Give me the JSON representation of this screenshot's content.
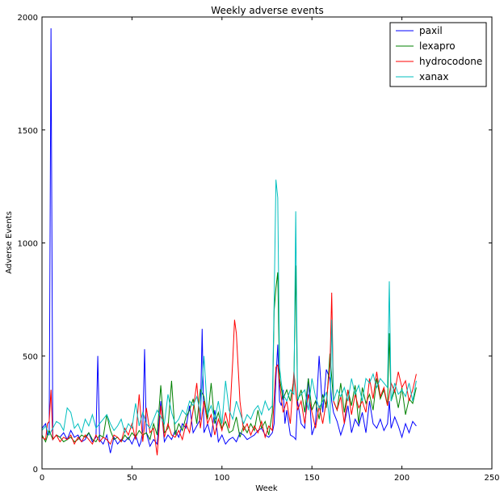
{
  "chart_data": {
    "type": "line",
    "title": "Weekly adverse events",
    "xlabel": "Week",
    "ylabel": "Adverse Events",
    "xlim": [
      0,
      250
    ],
    "ylim": [
      0,
      2000
    ],
    "xticks": [
      0,
      50,
      100,
      150,
      200,
      250
    ],
    "yticks": [
      0,
      500,
      1000,
      1500,
      2000
    ],
    "legend_position": "top-right",
    "grid": false,
    "series": [
      {
        "name": "paxil",
        "color": "#0000ff",
        "x": [
          0,
          2,
          3,
          4,
          5,
          6,
          8,
          10,
          12,
          14,
          16,
          18,
          20,
          22,
          24,
          26,
          28,
          30,
          31,
          32,
          34,
          36,
          38,
          40,
          42,
          44,
          46,
          48,
          50,
          52,
          54,
          55,
          56,
          57,
          58,
          60,
          62,
          64,
          66,
          68,
          70,
          72,
          74,
          76,
          78,
          80,
          82,
          84,
          86,
          88,
          89,
          90,
          92,
          94,
          96,
          98,
          100,
          102,
          104,
          106,
          108,
          110,
          112,
          114,
          116,
          118,
          120,
          122,
          124,
          126,
          128,
          129,
          130,
          131,
          132,
          133,
          134,
          135,
          136,
          138,
          140,
          141,
          142,
          144,
          146,
          148,
          150,
          152,
          154,
          156,
          158,
          160,
          161,
          162,
          164,
          166,
          168,
          170,
          172,
          174,
          176,
          178,
          180,
          182,
          184,
          186,
          188,
          190,
          192,
          193,
          194,
          196,
          198,
          200,
          202,
          204,
          206,
          208
        ],
        "y": [
          180,
          200,
          150,
          160,
          1950,
          130,
          150,
          140,
          160,
          130,
          170,
          140,
          150,
          120,
          130,
          160,
          120,
          140,
          500,
          130,
          110,
          150,
          70,
          140,
          110,
          130,
          120,
          140,
          110,
          150,
          100,
          120,
          170,
          530,
          160,
          100,
          130,
          110,
          300,
          120,
          150,
          130,
          170,
          140,
          200,
          180,
          280,
          160,
          190,
          220,
          620,
          160,
          200,
          140,
          260,
          120,
          150,
          110,
          130,
          140,
          120,
          160,
          150,
          130,
          140,
          150,
          170,
          180,
          150,
          140,
          160,
          200,
          400,
          550,
          300,
          280,
          350,
          200,
          260,
          150,
          140,
          130,
          300,
          200,
          180,
          400,
          150,
          200,
          500,
          250,
          440,
          400,
          300,
          250,
          210,
          150,
          200,
          280,
          160,
          220,
          190,
          250,
          160,
          300,
          200,
          180,
          220,
          170,
          200,
          300,
          180,
          230,
          190,
          140,
          200,
          160,
          210,
          190
        ]
      },
      {
        "name": "lexapro",
        "color": "#008000",
        "x": [
          0,
          2,
          4,
          6,
          8,
          10,
          12,
          14,
          16,
          18,
          20,
          22,
          24,
          26,
          28,
          30,
          32,
          34,
          36,
          38,
          40,
          42,
          44,
          46,
          48,
          50,
          52,
          54,
          56,
          58,
          60,
          62,
          64,
          66,
          68,
          70,
          72,
          74,
          76,
          78,
          80,
          82,
          84,
          86,
          88,
          90,
          92,
          94,
          96,
          98,
          100,
          102,
          104,
          106,
          108,
          110,
          112,
          114,
          116,
          118,
          120,
          122,
          124,
          126,
          128,
          129,
          130,
          131,
          132,
          134,
          136,
          138,
          140,
          141,
          142,
          144,
          146,
          148,
          150,
          152,
          154,
          156,
          158,
          160,
          162,
          164,
          166,
          168,
          170,
          172,
          174,
          176,
          178,
          180,
          182,
          184,
          186,
          188,
          190,
          192,
          193,
          194,
          196,
          198,
          200,
          202,
          204,
          206,
          208
        ],
        "y": [
          150,
          120,
          170,
          130,
          150,
          140,
          120,
          130,
          140,
          120,
          130,
          150,
          140,
          160,
          130,
          120,
          150,
          140,
          240,
          170,
          130,
          140,
          120,
          150,
          130,
          160,
          140,
          170,
          150,
          160,
          130,
          200,
          150,
          370,
          160,
          180,
          390,
          150,
          200,
          170,
          230,
          260,
          310,
          200,
          350,
          320,
          220,
          380,
          200,
          250,
          180,
          210,
          160,
          170,
          230,
          140,
          190,
          160,
          200,
          170,
          260,
          180,
          210,
          150,
          250,
          700,
          800,
          870,
          400,
          310,
          350,
          300,
          400,
          900,
          300,
          350,
          250,
          400,
          260,
          300,
          220,
          330,
          270,
          510,
          300,
          260,
          380,
          250,
          350,
          280,
          370,
          200,
          360,
          290,
          330,
          260,
          400,
          310,
          350,
          280,
          600,
          300,
          350,
          270,
          360,
          240,
          310,
          290,
          360
        ]
      },
      {
        "name": "hydrocodone",
        "color": "#ff0000",
        "x": [
          0,
          2,
          3,
          4,
          5,
          6,
          8,
          10,
          12,
          14,
          16,
          18,
          20,
          22,
          24,
          26,
          28,
          30,
          32,
          34,
          36,
          38,
          40,
          42,
          44,
          46,
          48,
          50,
          52,
          54,
          56,
          58,
          60,
          62,
          64,
          66,
          68,
          70,
          72,
          74,
          76,
          78,
          80,
          82,
          84,
          86,
          88,
          90,
          92,
          94,
          96,
          98,
          100,
          102,
          104,
          106,
          107,
          108,
          110,
          112,
          114,
          116,
          118,
          120,
          122,
          124,
          126,
          128,
          130,
          131,
          132,
          134,
          136,
          138,
          140,
          142,
          144,
          146,
          148,
          150,
          152,
          154,
          156,
          158,
          160,
          161,
          162,
          164,
          166,
          168,
          170,
          172,
          174,
          176,
          178,
          180,
          182,
          184,
          186,
          188,
          190,
          192,
          194,
          196,
          198,
          200,
          202,
          204,
          206,
          208
        ],
        "y": [
          140,
          130,
          200,
          210,
          350,
          130,
          150,
          120,
          140,
          130,
          150,
          110,
          140,
          120,
          150,
          130,
          110,
          150,
          120,
          140,
          130,
          110,
          150,
          140,
          120,
          180,
          150,
          200,
          130,
          330,
          120,
          270,
          160,
          180,
          60,
          280,
          140,
          200,
          150,
          140,
          170,
          130,
          200,
          160,
          260,
          380,
          180,
          300,
          200,
          240,
          150,
          220,
          170,
          250,
          180,
          480,
          660,
          600,
          300,
          170,
          200,
          150,
          190,
          160,
          210,
          140,
          190,
          170,
          450,
          460,
          380,
          250,
          300,
          200,
          430,
          260,
          300,
          200,
          330,
          250,
          180,
          280,
          200,
          300,
          450,
          780,
          300,
          260,
          320,
          200,
          350,
          240,
          330,
          270,
          300,
          250,
          400,
          310,
          430,
          320,
          360,
          280,
          380,
          340,
          430,
          360,
          390,
          300,
          350,
          420
        ]
      },
      {
        "name": "xanax",
        "color": "#00bfbf",
        "x": [
          0,
          2,
          4,
          6,
          8,
          10,
          12,
          14,
          16,
          18,
          20,
          22,
          24,
          26,
          28,
          30,
          32,
          34,
          36,
          38,
          40,
          42,
          44,
          46,
          48,
          50,
          52,
          54,
          56,
          58,
          60,
          62,
          64,
          66,
          68,
          70,
          72,
          74,
          76,
          78,
          80,
          82,
          84,
          86,
          88,
          90,
          92,
          94,
          96,
          98,
          100,
          102,
          104,
          106,
          108,
          110,
          112,
          114,
          116,
          118,
          120,
          122,
          124,
          126,
          128,
          129,
          130,
          131,
          132,
          133,
          134,
          136,
          138,
          140,
          141,
          142,
          144,
          146,
          148,
          150,
          152,
          154,
          156,
          158,
          160,
          161,
          162,
          164,
          166,
          168,
          170,
          172,
          174,
          176,
          178,
          180,
          182,
          184,
          186,
          188,
          190,
          192,
          193,
          194,
          196,
          198,
          200,
          202,
          204,
          206,
          208
        ],
        "y": [
          170,
          190,
          150,
          180,
          210,
          200,
          170,
          270,
          250,
          180,
          200,
          160,
          220,
          190,
          240,
          180,
          200,
          220,
          240,
          200,
          170,
          190,
          220,
          160,
          200,
          180,
          290,
          190,
          250,
          200,
          180,
          220,
          260,
          230,
          200,
          330,
          250,
          200,
          220,
          260,
          240,
          300,
          280,
          320,
          250,
          500,
          240,
          280,
          220,
          300,
          200,
          390,
          260,
          220,
          300,
          250,
          200,
          240,
          220,
          260,
          280,
          240,
          300,
          260,
          280,
          740,
          1280,
          1200,
          450,
          380,
          330,
          300,
          350,
          330,
          1140,
          310,
          330,
          350,
          260,
          400,
          320,
          270,
          300,
          340,
          200,
          660,
          300,
          350,
          320,
          360,
          300,
          400,
          330,
          370,
          300,
          400,
          380,
          420,
          360,
          400,
          380,
          360,
          830,
          300,
          380,
          330,
          350,
          320,
          380,
          300,
          390
        ]
      }
    ]
  }
}
